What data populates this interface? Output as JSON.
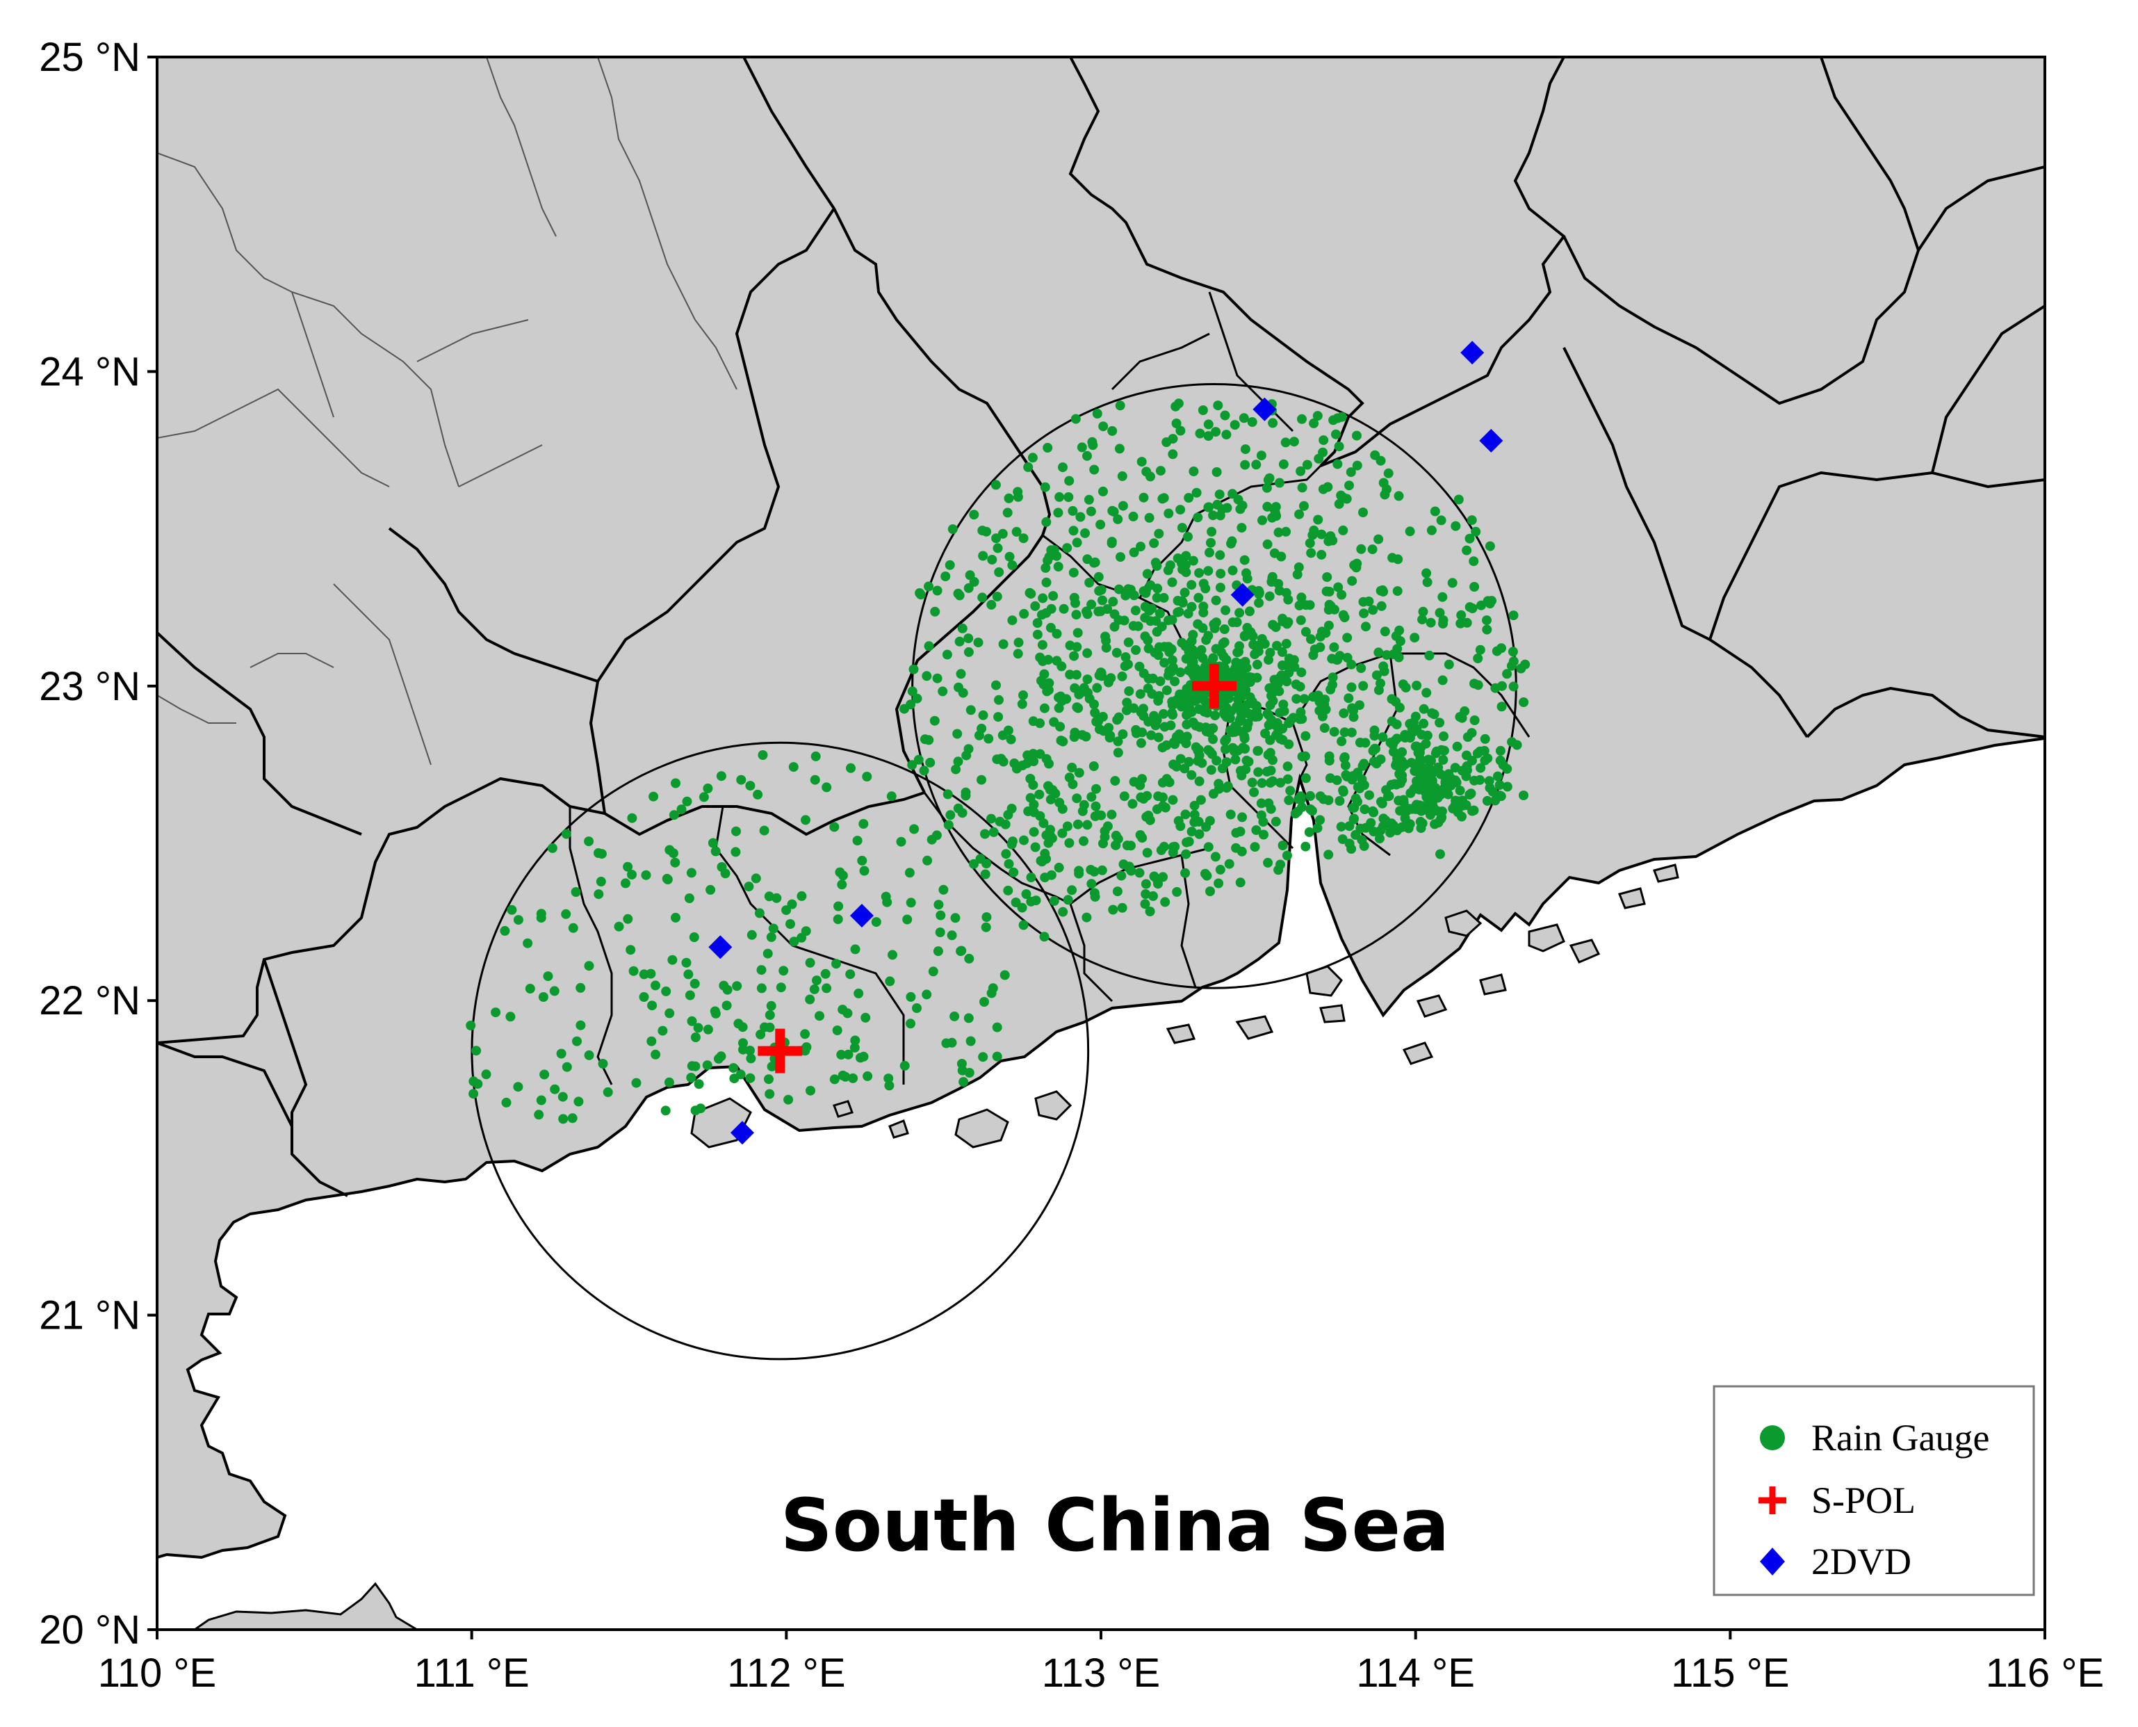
{
  "map": {
    "sea_label": "South China Sea",
    "colors": {
      "land": "#cccccc",
      "sea": "#ffffff",
      "border": "#000000",
      "gauge": "#0a9a2e",
      "radar": "#ff0000",
      "disdrometer": "#0000ee"
    },
    "extent": {
      "lon": [
        110,
        116
      ],
      "lat": [
        20,
        25
      ]
    },
    "lon_ticks": [
      {
        "value": 110,
        "label": "110 °E"
      },
      {
        "value": 111,
        "label": "111 °E"
      },
      {
        "value": 112,
        "label": "112 °E"
      },
      {
        "value": 113,
        "label": "113 °E"
      },
      {
        "value": 114,
        "label": "114 °E"
      },
      {
        "value": 115,
        "label": "115 °E"
      },
      {
        "value": 116,
        "label": "116 °E"
      }
    ],
    "lat_ticks": [
      {
        "value": 20,
        "label": "20 °N"
      },
      {
        "value": 21,
        "label": "21 °N"
      },
      {
        "value": 22,
        "label": "22 °N"
      },
      {
        "value": 23,
        "label": "23 °N"
      },
      {
        "value": 24,
        "label": "24 °N"
      },
      {
        "value": 25,
        "label": "25 °N"
      }
    ],
    "radars": [
      {
        "lon": 111.98,
        "lat": 21.84,
        "range_lat_deg": 0.98
      },
      {
        "lon": 113.36,
        "lat": 23.0,
        "range_lat_deg": 0.96
      }
    ],
    "disdrometers": [
      {
        "lon": 113.52,
        "lat": 23.88
      },
      {
        "lon": 114.18,
        "lat": 24.06
      },
      {
        "lon": 114.24,
        "lat": 23.78
      },
      {
        "lon": 113.45,
        "lat": 23.29
      },
      {
        "lon": 111.79,
        "lat": 22.17
      },
      {
        "lon": 112.24,
        "lat": 22.27
      },
      {
        "lon": 111.86,
        "lat": 21.58
      }
    ]
  },
  "legend": {
    "items": [
      {
        "label": "Rain Gauge",
        "symbol": "circle",
        "color": "#0a9a2e"
      },
      {
        "label": "S-POL",
        "symbol": "cross",
        "color": "#ff0000"
      },
      {
        "label": "2DVD",
        "symbol": "diamond",
        "color": "#0000ee"
      }
    ]
  }
}
